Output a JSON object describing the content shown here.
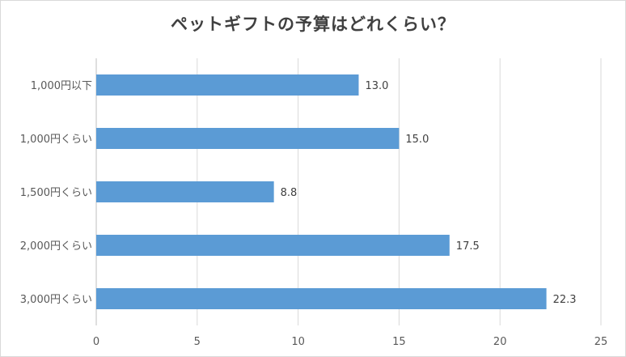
{
  "chart_data": {
    "type": "bar",
    "orientation": "horizontal",
    "title": "ペットギフトの予算はどれくらい？",
    "categories": [
      "1,000円以下",
      "1,000円くらい",
      "1,500円くらい",
      "2,000円くらい",
      "3,000円くらい"
    ],
    "values": [
      13.0,
      15.0,
      8.8,
      17.5,
      22.3
    ],
    "data_labels": [
      "13.0",
      "15.0",
      "8.8",
      "17.5",
      "22.3"
    ],
    "xlim": [
      0,
      25
    ],
    "x_ticks": [
      0,
      5,
      10,
      15,
      20,
      25
    ],
    "grid": true,
    "bar_color": "#5b9bd5",
    "grid_color": "#d9d9d9"
  }
}
